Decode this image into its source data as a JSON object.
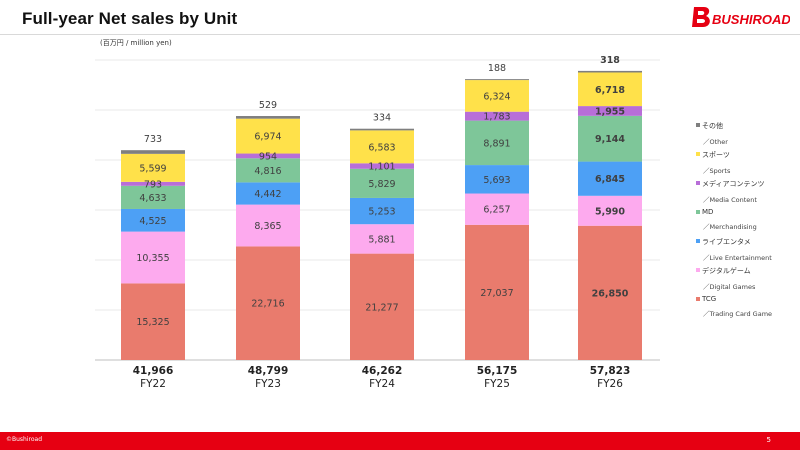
{
  "header": {
    "title": "Full-year Net sales by Unit",
    "logo_text": "BUSHIROAD",
    "unit_label": "(百万円 / million yen)"
  },
  "footer": {
    "copyright": "©Bushiroad",
    "page_number": "5",
    "bar_color": "#e60012"
  },
  "chart_data": {
    "type": "bar",
    "stacked": true,
    "categories": [
      "FY22",
      "FY23",
      "FY24",
      "FY25",
      "FY26"
    ],
    "totals": [
      "41,966",
      "48,799",
      "46,262",
      "56,175",
      "57,823"
    ],
    "series": [
      {
        "name": "TCG",
        "name_en": "／Trading Card Game",
        "color": "#e97b6d",
        "values": [
          15325,
          22716,
          21277,
          27037,
          26850
        ]
      },
      {
        "name": "デジタルゲーム",
        "name_en": "／Digital Games",
        "color": "#fdaaee",
        "values": [
          10355,
          8365,
          5881,
          6257,
          5990
        ]
      },
      {
        "name": "ライブエンタメ",
        "name_en": "／Live Entertainment",
        "color": "#4da0f5",
        "values": [
          4525,
          4442,
          5253,
          5693,
          6845
        ]
      },
      {
        "name": "MD",
        "name_en": "／Merchandising",
        "color": "#7ec699",
        "values": [
          4633,
          4816,
          5829,
          8891,
          9144
        ]
      },
      {
        "name": "メディアコンテンツ",
        "name_en": "／Media Content",
        "color": "#b86ed8",
        "values": [
          793,
          954,
          1101,
          1783,
          1955
        ]
      },
      {
        "name": "スポーツ",
        "name_en": "／Sports",
        "color": "#ffe14a",
        "values": [
          5599,
          6974,
          6583,
          6324,
          6718
        ]
      },
      {
        "name": "その他",
        "name_en": "／Other",
        "color": "#7f7f7f",
        "values": [
          733,
          529,
          334,
          188,
          318
        ]
      }
    ],
    "highlight_category": "FY26",
    "ylim": [
      0,
      60000
    ],
    "grid": true,
    "legend_position": "right"
  }
}
